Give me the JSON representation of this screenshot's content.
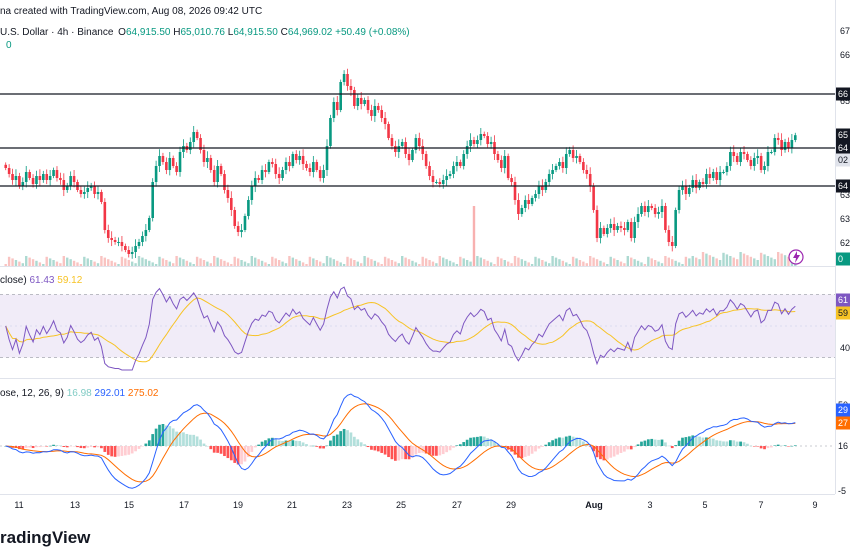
{
  "meta": {
    "created_line": "na created with TradingView.com, Aug 08, 2026 09:42 UTC",
    "brand": "radingView"
  },
  "legend": {
    "symbol": "U.S. Dollar · 4h · Binance",
    "open_label": "O",
    "open": "64,915.50",
    "high_label": "H",
    "high": "65,010.76",
    "low_label": "L",
    "low": "64,915.50",
    "close_label": "C",
    "close": "64,969.02",
    "change": "+50.49 (+0.08%)",
    "volume": "0"
  },
  "rsi_legend": {
    "label": "close)",
    "rsi": "61.43",
    "ma": "59.12"
  },
  "macd_legend": {
    "label": "ose, 12, 26, 9)",
    "hist": "16.98",
    "macd": "292.01",
    "signal": "275.02"
  },
  "colors": {
    "up": "#089981",
    "down": "#f23645",
    "rsi": "#7e57c2",
    "rsi_ma": "#f7c325",
    "rsi_band": "#ede7f6",
    "macd": "#2962ff",
    "signal": "#ff6d00",
    "hist_up_strong": "#26a69a",
    "hist_up_weak": "#b2dfdb",
    "hist_dn_strong": "#ff5252",
    "hist_dn_weak": "#ffcdd2"
  },
  "right_axis": {
    "price_ticks": [
      "67",
      "66",
      "65",
      "64",
      "63",
      "63",
      "62"
    ],
    "level_tags": [
      "66",
      "65",
      "02",
      "64",
      "64"
    ],
    "volume_tag": "0",
    "rsi_tags": [
      "61",
      "59"
    ],
    "rsi_tick": "40",
    "macd_tags": [
      "50",
      "29",
      "27",
      "16"
    ],
    "macd_tick": "-5"
  },
  "x_axis": [
    "11",
    "13",
    "15",
    "17",
    "19",
    "21",
    "23",
    "25",
    "27",
    "29",
    "Aug",
    "3",
    "5",
    "7",
    "9"
  ],
  "chart_data": [
    {
      "type": "candlestick",
      "pane": "price",
      "title": "",
      "xlabel": "",
      "ylabel": "",
      "x_start": "Jul 10",
      "interval": "4h",
      "ylim": [
        61800,
        67200
      ],
      "horizontal_lines": [
        66000,
        64650,
        63700
      ],
      "close": [
        64150,
        64000,
        63850,
        63950,
        63700,
        63800,
        64050,
        63900,
        63750,
        63950,
        63850,
        64000,
        63850,
        63950,
        64100,
        63900,
        63850,
        63600,
        63700,
        63950,
        63800,
        63600,
        63500,
        63550,
        63650,
        63700,
        63500,
        63550,
        63300,
        62600,
        62400,
        62350,
        62300,
        62300,
        62200,
        62100,
        62000,
        62050,
        62200,
        62300,
        62450,
        62600,
        62900,
        63800,
        64200,
        64450,
        64300,
        64100,
        64400,
        64200,
        64050,
        64550,
        64700,
        64600,
        64800,
        65050,
        64900,
        64600,
        64300,
        64400,
        64100,
        63800,
        64200,
        64000,
        63600,
        63400,
        63100,
        62700,
        62550,
        62600,
        62950,
        63350,
        63700,
        63900,
        63850,
        64100,
        64050,
        64300,
        64250,
        64000,
        63900,
        64100,
        64300,
        64200,
        64500,
        64350,
        64450,
        64250,
        64150,
        64050,
        64300,
        64100,
        63900,
        64100,
        64700,
        65400,
        65800,
        65600,
        66300,
        66500,
        66200,
        66100,
        65700,
        65900,
        65750,
        65850,
        65600,
        65450,
        65700,
        65600,
        65400,
        65250,
        64900,
        64700,
        64550,
        64700,
        64800,
        64500,
        64350,
        64600,
        64900,
        64700,
        64500,
        64200,
        63950,
        63800,
        63800,
        63750,
        63850,
        63950,
        64000,
        64200,
        64300,
        64200,
        64500,
        64700,
        64850,
        64750,
        64850,
        65000,
        64950,
        64750,
        64800,
        64500,
        64350,
        64150,
        64450,
        63900,
        63800,
        63350,
        63000,
        63150,
        63350,
        63250,
        63400,
        63500,
        63700,
        63600,
        63800,
        64000,
        64100,
        64200,
        64300,
        64150,
        64500,
        64600,
        64400,
        64450,
        64300,
        64100,
        64000,
        63700,
        63100,
        62400,
        62650,
        62500,
        62650,
        62750,
        62600,
        62700,
        62650,
        62600,
        62800,
        62400,
        62800,
        63000,
        63200,
        63050,
        63200,
        63150,
        63000,
        63050,
        63200,
        62600,
        62300,
        62200,
        63100,
        63600,
        63700,
        63500,
        63650,
        63850,
        63650,
        63800,
        63750,
        64000,
        63900,
        64050,
        63850,
        64050,
        64050,
        64200,
        64550,
        64450,
        64300,
        64550,
        64500,
        64350,
        64200,
        64400,
        64450,
        64100,
        64200,
        64550,
        64550,
        64900,
        64850,
        64600,
        64800,
        64650,
        64850,
        64970
      ],
      "volume_spike_index": 137
    },
    {
      "type": "line",
      "pane": "rsi",
      "title": "",
      "ylim": [
        22,
        78
      ],
      "band": [
        30,
        70
      ],
      "series": [
        {
          "name": "RSI",
          "color": "#7e57c2"
        },
        {
          "name": "",
          "color": "#f7c325"
        }
      ]
    },
    {
      "type": "line",
      "pane": "macd",
      "title": "",
      "series": [
        {
          "name": "MACD",
          "color": "#2962ff"
        },
        {
          "name": "",
          "color": "#ff6d00"
        },
        {
          "name": "",
          "type": "histogram"
        }
      ]
    }
  ]
}
